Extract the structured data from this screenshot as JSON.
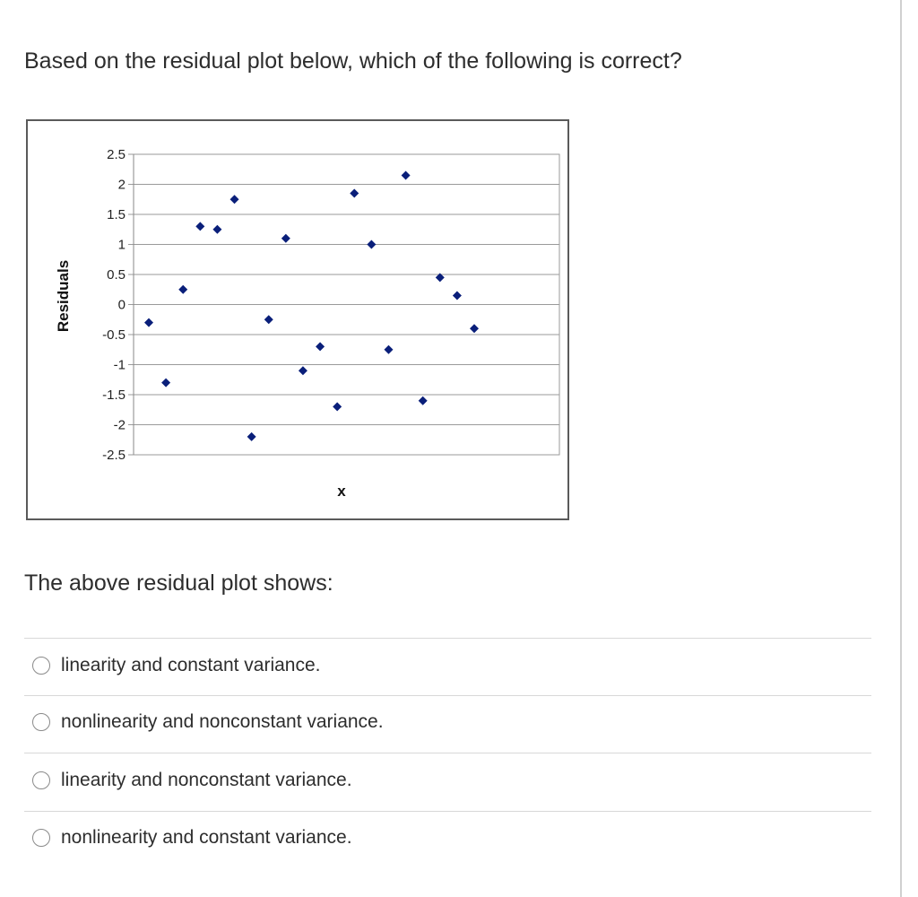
{
  "question": {
    "text": "Based on the residual plot below, which of the following is correct?"
  },
  "prompt": {
    "text": "The above residual plot shows:"
  },
  "options": [
    {
      "label": "linearity and constant variance.",
      "selected": false
    },
    {
      "label": "nonlinearity and nonconstant variance.",
      "selected": false
    },
    {
      "label": "linearity and nonconstant variance.",
      "selected": false
    },
    {
      "label": "nonlinearity and constant variance.",
      "selected": false
    }
  ],
  "chart_data": {
    "type": "scatter",
    "xlabel": "x",
    "ylabel": "Residuals",
    "ylim": [
      -2.5,
      2.5
    ],
    "yticks": [
      "2.5",
      "2",
      "1.5",
      "1",
      "0.5",
      "0",
      "-0.5",
      "-1",
      "-1.5",
      "-2",
      "-2.5"
    ],
    "grid": true,
    "marker_color": "#0a1f7a",
    "points": [
      {
        "x": 1,
        "y": -0.3
      },
      {
        "x": 2,
        "y": -1.3
      },
      {
        "x": 3,
        "y": 0.25
      },
      {
        "x": 4,
        "y": 1.3
      },
      {
        "x": 5,
        "y": 1.25
      },
      {
        "x": 6,
        "y": 1.75
      },
      {
        "x": 7,
        "y": -2.2
      },
      {
        "x": 8,
        "y": -0.25
      },
      {
        "x": 9,
        "y": 1.1
      },
      {
        "x": 10,
        "y": -1.1
      },
      {
        "x": 11,
        "y": -0.7
      },
      {
        "x": 12,
        "y": -1.7
      },
      {
        "x": 13,
        "y": 1.85
      },
      {
        "x": 14,
        "y": 1.0
      },
      {
        "x": 15,
        "y": -0.75
      },
      {
        "x": 16,
        "y": 2.15
      },
      {
        "x": 17,
        "y": -1.6
      },
      {
        "x": 18,
        "y": 0.45
      },
      {
        "x": 19,
        "y": 0.15
      },
      {
        "x": 20,
        "y": -0.4
      }
    ]
  }
}
